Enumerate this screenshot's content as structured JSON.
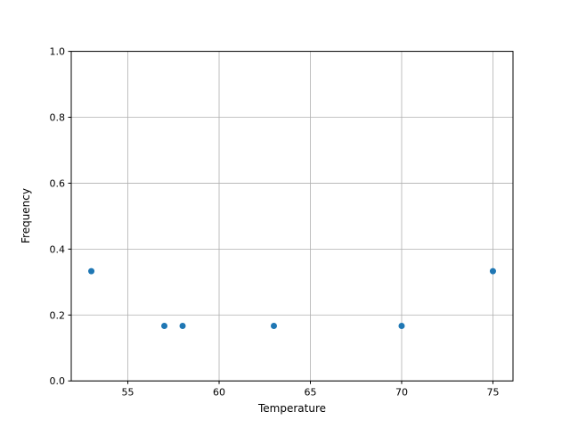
{
  "chart_data": {
    "type": "scatter",
    "title": "",
    "xlabel": "Temperature",
    "ylabel": "Frequency",
    "x": [
      53,
      57,
      58,
      63,
      70,
      75
    ],
    "y": [
      0.333,
      0.167,
      0.167,
      0.167,
      0.167,
      0.333
    ],
    "xlim": [
      51.9,
      76.1
    ],
    "ylim": [
      0.0,
      1.0
    ],
    "xticks": [
      55,
      60,
      65,
      70,
      75
    ],
    "xtick_labels": [
      "55",
      "60",
      "65",
      "70",
      "75"
    ],
    "yticks": [
      0.0,
      0.2,
      0.4,
      0.6,
      0.8,
      1.0
    ],
    "ytick_labels": [
      "0.0",
      "0.2",
      "0.4",
      "0.6",
      "0.8",
      "1.0"
    ],
    "grid": true,
    "legend": null,
    "marker_color": "#1f77b4",
    "grid_color": "#b0b0b0",
    "spine_color": "#000000",
    "background": "#ffffff"
  }
}
